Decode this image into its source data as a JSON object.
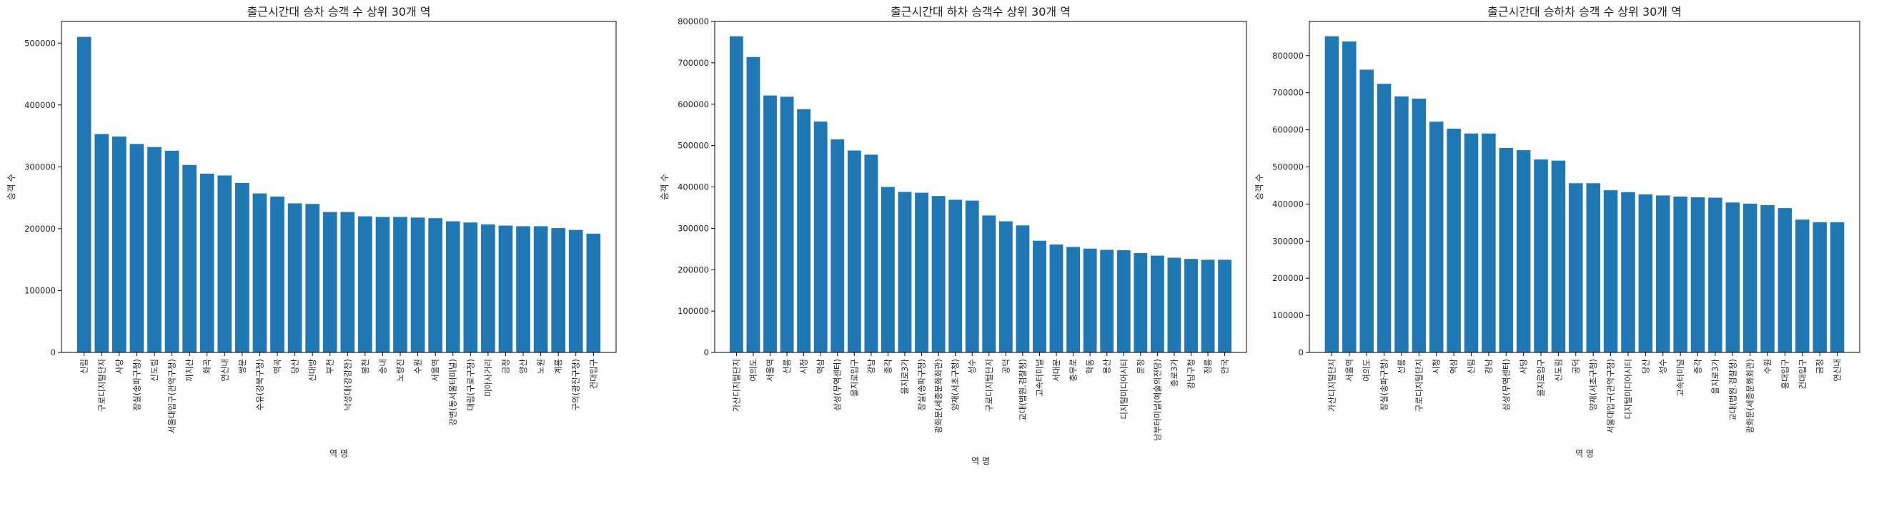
{
  "chart_data": [
    {
      "type": "bar",
      "title": "출근시간대 승차 승객 수 상위 30개 역",
      "xlabel": "역 명",
      "ylabel": "승객 수",
      "ylim": [
        0,
        535000
      ],
      "yticks": [
        0,
        100000,
        200000,
        300000,
        400000,
        500000
      ],
      "grid": false,
      "color": "#1f77b4",
      "categories": [
        "신림",
        "구로디지털단지",
        "사당",
        "잠실(송파구청)",
        "신도림",
        "서울대입구(관악구청)",
        "까치산",
        "화곡",
        "연신내",
        "쌍문",
        "수유(강북구청)",
        "역곡",
        "당산",
        "신대방",
        "부천",
        "낙성대(강감찬)",
        "봉천",
        "송내",
        "노량진",
        "수원",
        "서울역",
        "강변(동서울터미널)",
        "대림(구로구청)",
        "미아사거리",
        "금정",
        "양산",
        "노원",
        "계룡",
        "구의(광진구청)",
        "건대입구"
      ],
      "values": [
        510000,
        353000,
        349000,
        337000,
        332000,
        326000,
        303000,
        289000,
        286000,
        274000,
        257000,
        252000,
        241000,
        240000,
        227000,
        227000,
        220000,
        219000,
        219000,
        218000,
        217000,
        212000,
        210000,
        207000,
        205000,
        204000,
        204000,
        201000,
        198000,
        192000
      ]
    },
    {
      "type": "bar",
      "title": "출근시간대 하차 승객수 상위 30개 역",
      "xlabel": "역 명",
      "ylabel": "승객 수",
      "ylim": [
        0,
        800000
      ],
      "yticks": [
        0,
        100000,
        200000,
        300000,
        400000,
        500000,
        600000,
        700000,
        800000
      ],
      "grid": false,
      "color": "#1f77b4",
      "categories": [
        "가산디지털단지",
        "여의도",
        "서울역",
        "선릉",
        "시청",
        "역삼",
        "삼성(무역센터)",
        "을지로입구",
        "강남",
        "종각",
        "을지로3가",
        "잠실(송파구청)",
        "광화문(세종문화회관)",
        "양재(서초구청)",
        "성수",
        "구로디지털단지",
        "공덕",
        "교대(법원.검찰청)",
        "고속터미널",
        "서대문",
        "충무로",
        "학동",
        "용산",
        "디지털미디어시티",
        "문정",
        "남부터미널(예술의전당)",
        "종로3가",
        "강남구청",
        "정릉",
        "안국"
      ],
      "values": [
        764000,
        714000,
        621000,
        618000,
        588000,
        558000,
        515000,
        488000,
        478000,
        400000,
        388000,
        386000,
        378000,
        369000,
        367000,
        331000,
        317000,
        307000,
        270000,
        261000,
        255000,
        251000,
        248000,
        247000,
        240000,
        234000,
        229000,
        226000,
        224000,
        224000
      ]
    },
    {
      "type": "bar",
      "title": "출근시간대 승하차 승객 수 상위 30개 역",
      "xlabel": "역 명",
      "ylabel": "승객 수",
      "ylim": [
        0,
        892000
      ],
      "yticks": [
        0,
        100000,
        200000,
        300000,
        400000,
        500000,
        600000,
        700000,
        800000
      ],
      "grid": false,
      "color": "#1f77b4",
      "categories": [
        "가산디지털단지",
        "서울역",
        "여의도",
        "잠실(송파구청)",
        "선릉",
        "구로디지털단지",
        "시청",
        "역삼",
        "신림",
        "강남",
        "삼성(무역센터)",
        "사당",
        "을지로입구",
        "신도림",
        "공덕",
        "양재(서초구청)",
        "서울대입구(관악구청)",
        "디지털미디어시티",
        "당산",
        "성수",
        "고속터미널",
        "종각",
        "을지로3가",
        "교대(법원.검찰청)",
        "광화문(세종문화회관)",
        "수원",
        "홍대입구",
        "건대입구",
        "금정",
        "연신내"
      ],
      "values": [
        852000,
        838000,
        762000,
        724000,
        690000,
        684000,
        622000,
        603000,
        590000,
        590000,
        551000,
        545000,
        520000,
        517000,
        456000,
        456000,
        437000,
        432000,
        426000,
        423000,
        420000,
        418000,
        417000,
        404000,
        401000,
        397000,
        389000,
        358000,
        351000,
        351000
      ]
    }
  ]
}
